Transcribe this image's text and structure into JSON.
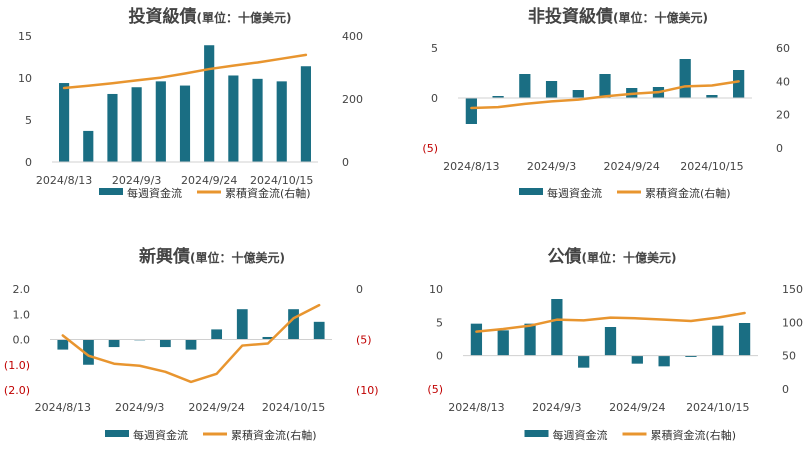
{
  "colors": {
    "bar": "#1a6e83",
    "line": "#e8952f",
    "axis": "#d0d0d0",
    "negative": "#c00000"
  },
  "legend": {
    "bar_label": "每週資金流",
    "line_label": "累積資金流(右軸)"
  },
  "chart_data": [
    {
      "type": "bar",
      "title": "投資級債",
      "subtitle": "(單位：十億美元)",
      "x_tick_labels": [
        "2024/8/13",
        "2024/9/3",
        "2024/9/24",
        "2024/10/15"
      ],
      "left_ticks": [
        "0",
        "5",
        "10",
        "15"
      ],
      "right_ticks": [
        "0",
        "200",
        "400"
      ],
      "ylim_left": [
        0,
        15
      ],
      "ylim_right": [
        0,
        400
      ],
      "series": [
        {
          "type": "bar",
          "axis": "left",
          "values": [
            9.4,
            3.7,
            8.1,
            8.9,
            9.6,
            9.1,
            13.9,
            10.3,
            9.9,
            9.6,
            11.4
          ]
        },
        {
          "type": "line",
          "axis": "right",
          "values": [
            235,
            242,
            250,
            259,
            268,
            281,
            295,
            306,
            316,
            328,
            340
          ]
        }
      ]
    },
    {
      "type": "bar",
      "title": "非投資級債",
      "subtitle": "(單位：十億美元)",
      "x_tick_labels": [
        "2024/8/13",
        "2024/9/3",
        "2024/9/24",
        "2024/10/15"
      ],
      "left_ticks": [
        "(5)",
        "0",
        "5"
      ],
      "right_ticks": [
        "0",
        "20",
        "40",
        "60"
      ],
      "ylim_left": [
        -5,
        5
      ],
      "ylim_right": [
        0,
        60
      ],
      "series": [
        {
          "type": "bar",
          "axis": "left",
          "values": [
            -2.6,
            0.2,
            2.4,
            1.7,
            0.8,
            2.4,
            1.0,
            1.1,
            3.9,
            0.3,
            2.8
          ]
        },
        {
          "type": "line",
          "axis": "right",
          "values": [
            24,
            24.5,
            26.5,
            28,
            29,
            31,
            32.5,
            33.5,
            37,
            37.5,
            40
          ]
        }
      ]
    },
    {
      "type": "bar",
      "title": "新興債",
      "subtitle": "(單位：十億美元)",
      "x_tick_labels": [
        "2024/8/13",
        "2024/9/3",
        "2024/9/24",
        "2024/10/15"
      ],
      "left_ticks": [
        "(2.0)",
        "(1.0)",
        "0.0",
        "1.0",
        "2.0"
      ],
      "right_ticks": [
        "(10)",
        "(5)",
        "0"
      ],
      "ylim_left": [
        -2,
        2
      ],
      "ylim_right": [
        -10,
        0
      ],
      "series": [
        {
          "type": "bar",
          "axis": "left",
          "values": [
            -0.4,
            -1.0,
            -0.3,
            0.0,
            -0.3,
            -0.4,
            0.4,
            1.2,
            0.1,
            1.2,
            0.7
          ]
        },
        {
          "type": "line",
          "axis": "right",
          "values": [
            -4.6,
            -6.6,
            -7.4,
            -7.6,
            -8.2,
            -9.2,
            -8.4,
            -5.6,
            -5.4,
            -2.9,
            -1.6
          ]
        }
      ]
    },
    {
      "type": "bar",
      "title": "公債",
      "subtitle": "(單位：十億美元)",
      "x_tick_labels": [
        "2024/8/13",
        "2024/9/3",
        "2024/9/24",
        "2024/10/15"
      ],
      "left_ticks": [
        "(5)",
        "0",
        "5",
        "10"
      ],
      "right_ticks": [
        "0",
        "50",
        "100",
        "150"
      ],
      "ylim_left": [
        -5,
        10
      ],
      "ylim_right": [
        0,
        150
      ],
      "series": [
        {
          "type": "bar",
          "axis": "left",
          "values": [
            4.8,
            3.8,
            4.8,
            8.5,
            -1.8,
            4.3,
            -1.2,
            -1.6,
            -0.2,
            4.5,
            4.9
          ]
        },
        {
          "type": "line",
          "axis": "right",
          "values": [
            86,
            90,
            95,
            104,
            103,
            107,
            106,
            104,
            102,
            107,
            114
          ]
        }
      ]
    }
  ]
}
